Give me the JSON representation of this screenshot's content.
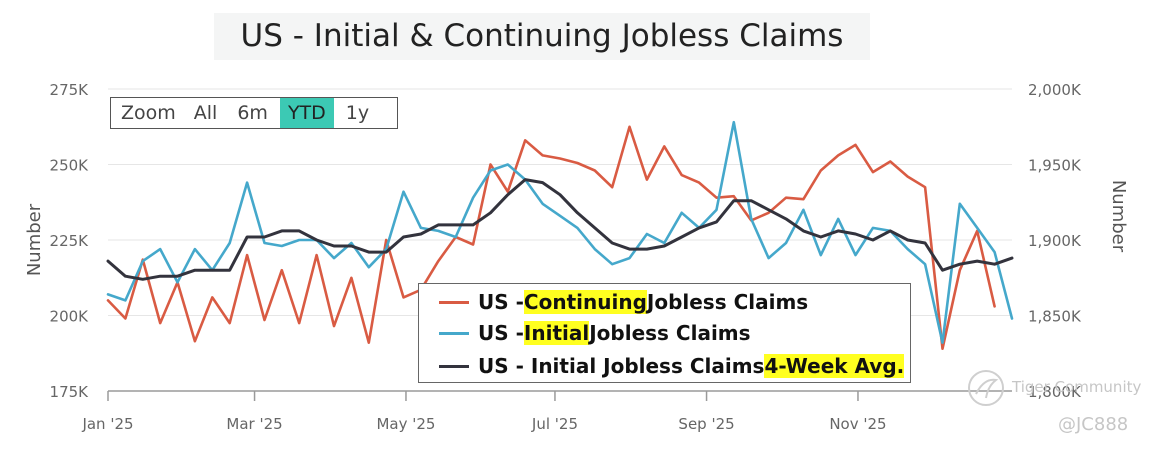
{
  "chart_data": {
    "type": "line",
    "title": "US - Initial & Continuing Jobless Claims",
    "zoom": {
      "label": "Zoom",
      "buttons": [
        "All",
        "6m",
        "YTD",
        "1y"
      ],
      "active": "YTD"
    },
    "left_axis": {
      "label": "Number",
      "ticks": [
        175000,
        200000,
        225000,
        250000,
        275000
      ],
      "tick_labels": [
        "175K",
        "200K",
        "225K",
        "250K",
        "275K"
      ],
      "range": [
        175000,
        275000
      ]
    },
    "right_axis": {
      "label": "Number",
      "ticks": [
        1800000,
        1850000,
        1900000,
        1950000,
        2000000
      ],
      "tick_labels": [
        "1,800K",
        "1,850K",
        "1,900K",
        "1,950K",
        "2,000K"
      ],
      "range": [
        1800000,
        2000000
      ]
    },
    "x_axis": {
      "tick_labels": [
        "Jan '25",
        "Mar '25",
        "May '25",
        "Jul '25",
        "Sep '25",
        "Nov '25"
      ],
      "tick_weeks": [
        0,
        8.43,
        17.14,
        25.71,
        34.43,
        43.14
      ]
    },
    "grid": true,
    "legend_placement": "bottom-center",
    "series": [
      {
        "name": "US - Continuing Jobless Claims",
        "legend_parts": [
          "US - ",
          "Continuing",
          " Jobless Claims"
        ],
        "legend_highlight_index": 1,
        "color": "#d95b43",
        "axis": "right",
        "values": [
          1860000,
          1848000,
          1887000,
          1845000,
          1872000,
          1833000,
          1862000,
          1845000,
          1890000,
          1847000,
          1880000,
          1845000,
          1890000,
          1843000,
          1875000,
          1832000,
          1900000,
          1862000,
          1867000,
          1886000,
          1902000,
          1897000,
          1950000,
          1932000,
          1966000,
          1956000,
          1954000,
          1951000,
          1946000,
          1935000,
          1975000,
          1940000,
          1962000,
          1943000,
          1938000,
          1928000,
          1929000,
          1913000,
          1918000,
          1928000,
          1927000,
          1946000,
          1956000,
          1963000,
          1945000,
          1952000,
          1942000,
          1935000,
          1828000,
          1880000,
          1906000,
          1856000
        ]
      },
      {
        "name": "US - Initial Jobless Claims",
        "legend_parts": [
          "US - ",
          "Initial",
          " Jobless Claims"
        ],
        "legend_highlight_index": 1,
        "color": "#45a8cb",
        "axis": "left",
        "values": [
          207000,
          205000,
          218000,
          222000,
          211000,
          222000,
          215000,
          224000,
          244000,
          224000,
          223000,
          225000,
          225000,
          219000,
          224000,
          216000,
          222000,
          241000,
          229000,
          228000,
          226000,
          239000,
          248000,
          250000,
          245000,
          237000,
          233000,
          229000,
          222000,
          217000,
          219000,
          227000,
          224000,
          234000,
          229000,
          235000,
          264000,
          232000,
          219000,
          224000,
          235000,
          220000,
          232000,
          220000,
          229000,
          228000,
          222000,
          217000,
          191000,
          237000,
          229000,
          221000,
          199000
        ]
      },
      {
        "name": "US - Initial Jobless Claims 4-Week Avg.",
        "legend_parts": [
          "US - Initial Jobless Claims ",
          "4-Week Avg.",
          ""
        ],
        "legend_highlight_index": 1,
        "color": "#33333d",
        "axis": "left",
        "values": [
          218000,
          213000,
          212000,
          213000,
          213000,
          215000,
          215000,
          215000,
          226000,
          226000,
          228000,
          228000,
          225000,
          223000,
          223000,
          221000,
          221000,
          226000,
          227000,
          230000,
          230000,
          230000,
          234000,
          240000,
          245000,
          244000,
          240000,
          234000,
          229000,
          224000,
          222000,
          222000,
          223000,
          226000,
          229000,
          231000,
          238000,
          238000,
          235000,
          232000,
          228000,
          226000,
          228000,
          227000,
          225000,
          228000,
          225000,
          224000,
          215000,
          217000,
          218000,
          217000,
          219000
        ]
      }
    ]
  },
  "watermark": {
    "brand": "Tiger Community",
    "handle": "@JC888"
  }
}
